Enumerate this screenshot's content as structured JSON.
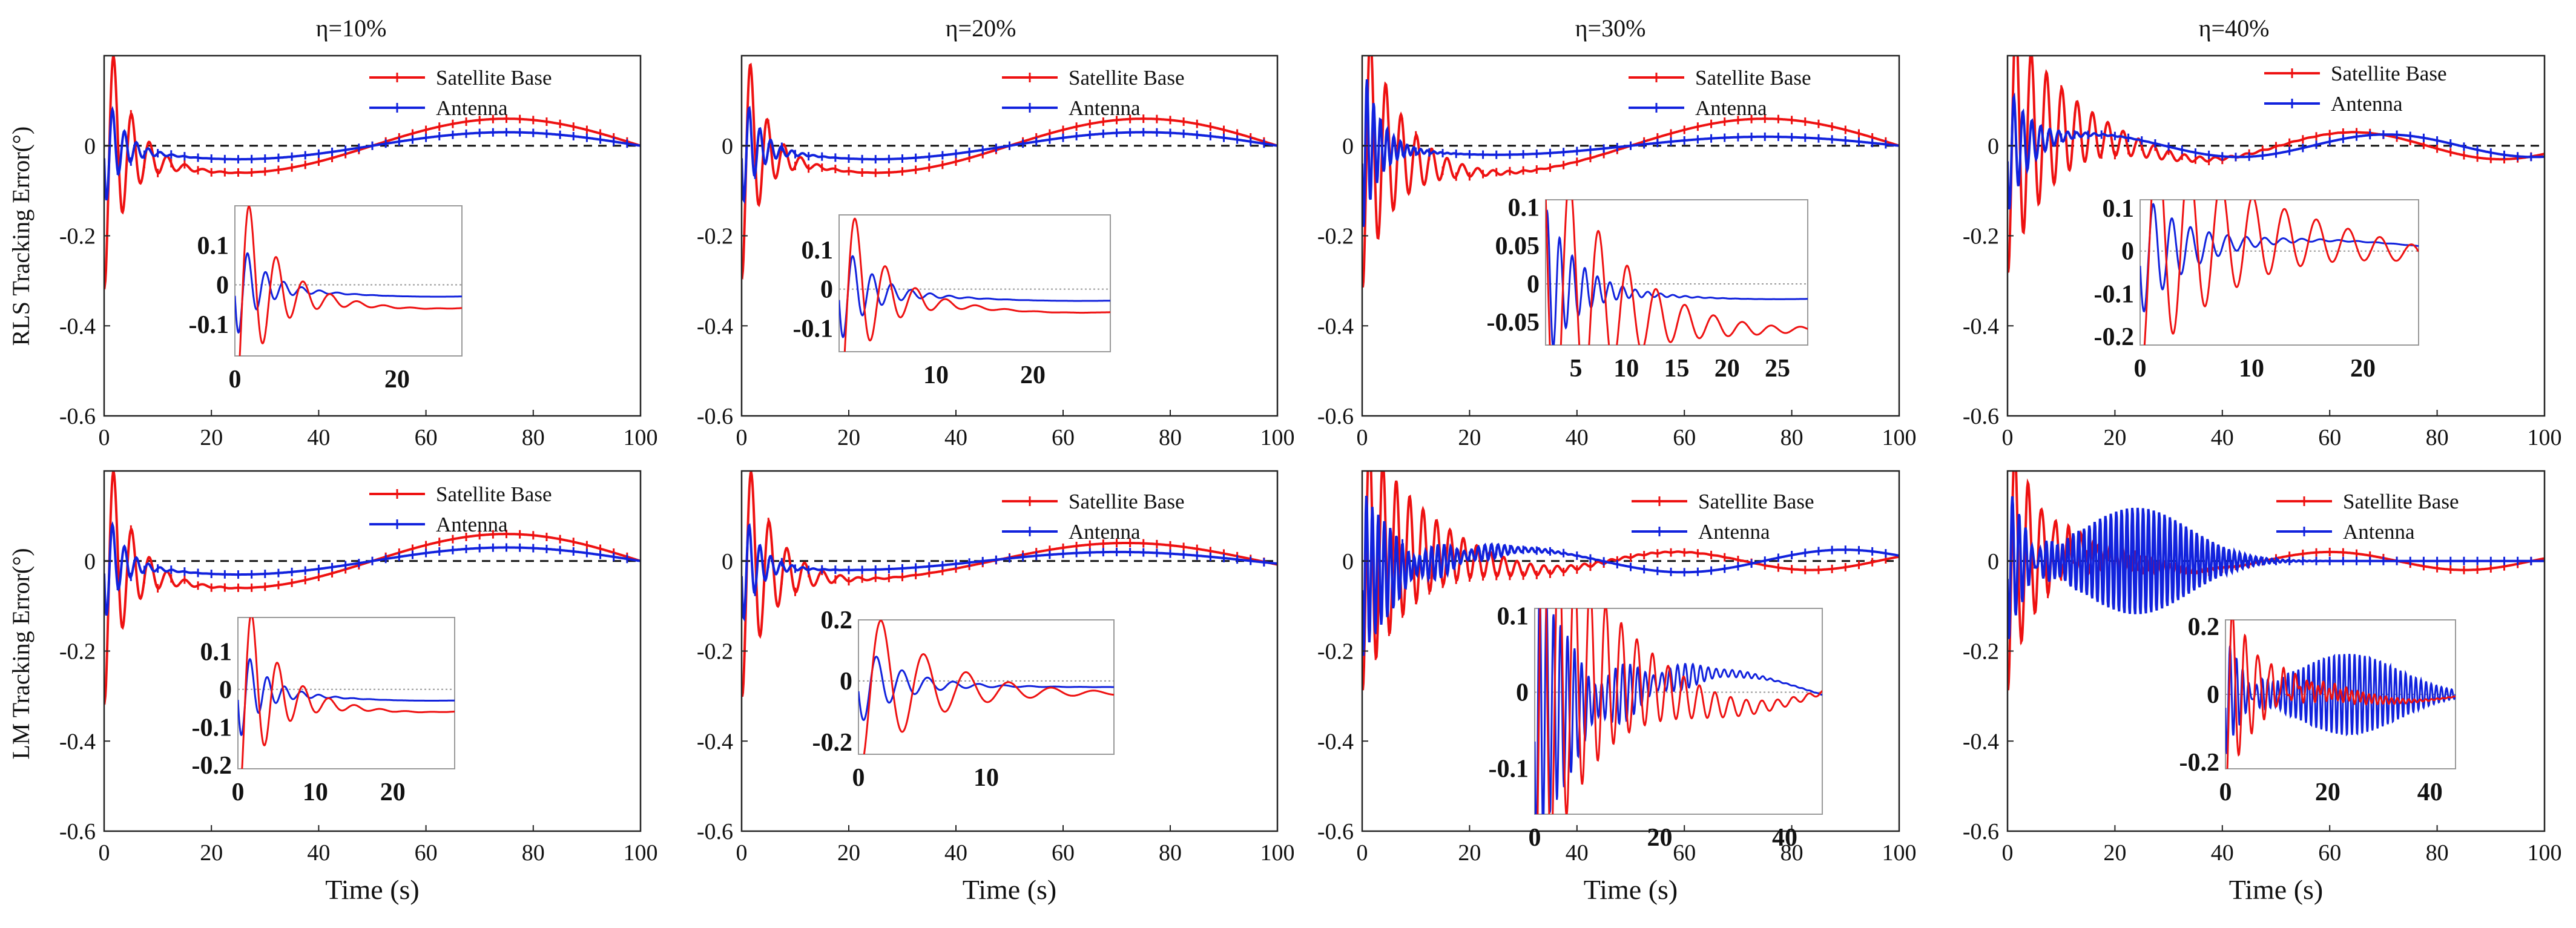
{
  "figure": {
    "column_titles": [
      "η=10%",
      "η=20%",
      "η=30%",
      "η=40%"
    ],
    "row_labels": [
      "RLS Tracking Error(°)",
      "LM Tracking Error(°)"
    ],
    "colors": {
      "satellite_base": "#ee1111",
      "antenna": "#1122dd",
      "zero_line": "#111111",
      "axes": "#222222",
      "inset_frame": "#999999"
    }
  },
  "chart_data": [
    {
      "id": "rls_10",
      "type": "line",
      "title": "η=10%",
      "xlabel": "",
      "ylabel": "RLS Tracking Error(°)",
      "xlim": [
        0,
        100
      ],
      "ylim": [
        -0.6,
        0.2
      ],
      "xticks": [
        "0",
        "20",
        "40",
        "60",
        "80",
        "100"
      ],
      "yticks": [
        "0",
        "-0.2",
        "-0.4",
        "-0.6"
      ],
      "legend": [
        "Satellite Base",
        "Antenna"
      ],
      "series": [
        {
          "name": "Satellite Base",
          "model": {
            "b_amp": -0.06,
            "b_phase": 0.0,
            "b_period": 100,
            "t_amp": 0.32,
            "t_decay": 4.0,
            "t_freq": 0.3,
            "t_phase": 1.3,
            "osc_amp": 0.0,
            "osc_freq": 0.0,
            "osc_center": 0
          }
        },
        {
          "name": "Antenna",
          "model": {
            "b_amp": -0.03,
            "b_phase": 0.0,
            "b_period": 100,
            "t_amp": 0.14,
            "t_decay": 3.0,
            "t_freq": 0.45,
            "t_phase": 0.2,
            "osc_amp": 0.0,
            "osc_freq": 0.0,
            "osc_center": 0
          }
        }
      ],
      "inset": {
        "xlim": [
          0,
          28
        ],
        "ylim": [
          -0.18,
          0.2
        ],
        "xticks": [
          "0",
          "20"
        ],
        "yticks": [
          "0.1",
          "0",
          "-0.1"
        ]
      }
    },
    {
      "id": "rls_20",
      "type": "line",
      "title": "η=20%",
      "xlabel": "",
      "ylabel": "",
      "xlim": [
        0,
        100
      ],
      "ylim": [
        -0.6,
        0.2
      ],
      "xticks": [
        "0",
        "20",
        "40",
        "60",
        "80",
        "100"
      ],
      "yticks": [
        "0",
        "-0.2",
        "-0.4",
        "-0.6"
      ],
      "legend": [
        "Satellite Base",
        "Antenna"
      ],
      "series": [
        {
          "name": "Satellite Base",
          "model": {
            "b_amp": -0.06,
            "b_phase": 0.0,
            "b_period": 100,
            "t_amp": 0.3,
            "t_decay": 3.5,
            "t_freq": 0.32,
            "t_phase": 1.3,
            "osc_amp": 0.0,
            "osc_freq": 0.0,
            "osc_center": 0
          }
        },
        {
          "name": "Antenna",
          "model": {
            "b_amp": -0.03,
            "b_phase": 0.0,
            "b_period": 100,
            "t_amp": 0.14,
            "t_decay": 3.0,
            "t_freq": 0.5,
            "t_phase": 0.2,
            "osc_amp": 0.0,
            "osc_freq": 0.0,
            "osc_center": 0
          }
        }
      ],
      "inset": {
        "xlim": [
          0,
          28
        ],
        "ylim": [
          -0.16,
          0.19
        ],
        "xticks": [
          "10",
          "20"
        ],
        "yticks": [
          "0.1",
          "0",
          "-0.1"
        ]
      }
    },
    {
      "id": "rls_30",
      "type": "line",
      "title": "η=30%",
      "xlabel": "",
      "ylabel": "",
      "xlim": [
        0,
        100
      ],
      "ylim": [
        -0.6,
        0.2
      ],
      "xticks": [
        "0",
        "20",
        "40",
        "60",
        "80",
        "100"
      ],
      "yticks": [
        "0",
        "-0.2",
        "-0.4",
        "-0.6"
      ],
      "legend": [
        "Satellite Base",
        "Antenna"
      ],
      "series": [
        {
          "name": "Satellite Base",
          "model": {
            "b_amp": -0.06,
            "b_phase": 0.0,
            "b_period": 100,
            "t_amp": 0.32,
            "t_decay": 6.0,
            "t_freq": 0.35,
            "t_phase": 1.3,
            "osc_amp": 0.0,
            "osc_freq": 0.0,
            "osc_center": 0
          }
        },
        {
          "name": "Antenna",
          "model": {
            "b_amp": -0.02,
            "b_phase": 0.0,
            "b_period": 100,
            "t_amp": 0.2,
            "t_decay": 3.0,
            "t_freq": 0.8,
            "t_phase": 0.2,
            "osc_amp": 0.0,
            "osc_freq": 0.0,
            "osc_center": 0
          }
        }
      ],
      "inset": {
        "xlim": [
          2,
          28
        ],
        "ylim": [
          -0.08,
          0.11
        ],
        "xticks": [
          "5",
          "10",
          "15",
          "20",
          "25"
        ],
        "yticks": [
          "0.1",
          "0.05",
          "0",
          "-0.05"
        ]
      }
    },
    {
      "id": "rls_40",
      "type": "line",
      "title": "η=40%",
      "xlabel": "",
      "ylabel": "",
      "xlim": [
        0,
        100
      ],
      "ylim": [
        -0.6,
        0.2
      ],
      "xticks": [
        "0",
        "20",
        "40",
        "60",
        "80",
        "100"
      ],
      "yticks": [
        "0",
        "-0.2",
        "-0.4",
        "-0.6"
      ],
      "legend": [
        "Satellite Base",
        "Antenna"
      ],
      "series": [
        {
          "name": "Satellite Base",
          "model": {
            "b_amp": 0.03,
            "b_phase": 0.5,
            "b_period": 55,
            "t_amp": 0.3,
            "t_decay": 9.0,
            "t_freq": 0.35,
            "t_phase": 1.3,
            "osc_amp": 0.0,
            "osc_freq": 0.0,
            "osc_center": 0
          }
        },
        {
          "name": "Antenna",
          "model": {
            "b_amp": 0.025,
            "b_phase": -0.2,
            "b_period": 55,
            "t_amp": 0.15,
            "t_decay": 4.0,
            "t_freq": 0.6,
            "t_phase": 0.2,
            "osc_amp": 0.0,
            "osc_freq": 0.0,
            "osc_center": 0
          }
        }
      ],
      "inset": {
        "xlim": [
          0,
          25
        ],
        "ylim": [
          -0.22,
          0.12
        ],
        "xticks": [
          "0",
          "10",
          "20"
        ],
        "yticks": [
          "0.1",
          "0",
          "-0.1",
          "-0.2"
        ]
      }
    },
    {
      "id": "lm_10",
      "type": "line",
      "title": "",
      "xlabel": "Time (s)",
      "ylabel": "LM Tracking Error(°)",
      "xlim": [
        0,
        100
      ],
      "ylim": [
        -0.6,
        0.2
      ],
      "xticks": [
        "0",
        "20",
        "40",
        "60",
        "80",
        "100"
      ],
      "yticks": [
        "0",
        "-0.2",
        "-0.4",
        "-0.6"
      ],
      "legend": [
        "Satellite Base",
        "Antenna"
      ],
      "series": [
        {
          "name": "Satellite Base",
          "model": {
            "b_amp": -0.06,
            "b_phase": 0.0,
            "b_period": 100,
            "t_amp": 0.32,
            "t_decay": 4.0,
            "t_freq": 0.3,
            "t_phase": 1.3,
            "osc_amp": 0.0,
            "osc_freq": 0.0,
            "osc_center": 0
          }
        },
        {
          "name": "Antenna",
          "model": {
            "b_amp": -0.03,
            "b_phase": 0.0,
            "b_period": 100,
            "t_amp": 0.14,
            "t_decay": 3.0,
            "t_freq": 0.45,
            "t_phase": 0.2,
            "osc_amp": 0.0,
            "osc_freq": 0.0,
            "osc_center": 0
          }
        }
      ],
      "inset": {
        "xlim": [
          0,
          28
        ],
        "ylim": [
          -0.21,
          0.19
        ],
        "xticks": [
          "0",
          "10",
          "20"
        ],
        "yticks": [
          "0.1",
          "0",
          "-0.1",
          "-0.2"
        ]
      }
    },
    {
      "id": "lm_20",
      "type": "line",
      "title": "",
      "xlabel": "Time (s)",
      "ylabel": "",
      "xlim": [
        0,
        100
      ],
      "ylim": [
        -0.6,
        0.2
      ],
      "xticks": [
        "0",
        "20",
        "40",
        "60",
        "80",
        "100"
      ],
      "yticks": [
        "0",
        "-0.2",
        "-0.4",
        "-0.6"
      ],
      "legend": [
        "Satellite Base",
        "Antenna"
      ],
      "series": [
        {
          "name": "Satellite Base",
          "model": {
            "b_amp": -0.04,
            "b_phase": 0.2,
            "b_period": 100,
            "t_amp": 0.3,
            "t_decay": 5.0,
            "t_freq": 0.3,
            "t_phase": 1.3,
            "osc_amp": 0.0,
            "osc_freq": 0.0,
            "osc_center": 0
          }
        },
        {
          "name": "Antenna",
          "model": {
            "b_amp": -0.02,
            "b_phase": 0.3,
            "b_period": 100,
            "t_amp": 0.14,
            "t_decay": 3.0,
            "t_freq": 0.5,
            "t_phase": 0.2,
            "osc_amp": 0.0,
            "osc_freq": 0.0,
            "osc_center": 0
          }
        }
      ],
      "inset": {
        "xlim": [
          0,
          20
        ],
        "ylim": [
          -0.24,
          0.2
        ],
        "xticks": [
          "0",
          "10"
        ],
        "yticks": [
          "0.2",
          "0",
          "-0.2"
        ]
      }
    },
    {
      "id": "lm_30",
      "type": "line",
      "title": "",
      "xlabel": "Time (s)",
      "ylabel": "",
      "xlim": [
        0,
        100
      ],
      "ylim": [
        -0.6,
        0.2
      ],
      "xticks": [
        "0",
        "20",
        "40",
        "60",
        "80",
        "100"
      ],
      "yticks": [
        "0",
        "-0.2",
        "-0.4",
        "-0.6"
      ],
      "legend": [
        "Satellite Base",
        "Antenna"
      ],
      "series": [
        {
          "name": "Satellite Base",
          "model": {
            "b_amp": 0.02,
            "b_phase": 0.5,
            "b_period": 50,
            "t_amp": 0.3,
            "t_decay": 10.0,
            "t_freq": 0.4,
            "t_phase": 1.3,
            "osc_amp": 0.0,
            "osc_freq": 0.0,
            "osc_center": 0
          }
        },
        {
          "name": "Antenna",
          "model": {
            "b_amp": -0.025,
            "b_phase": 1.6,
            "b_period": 60,
            "t_amp": 0.2,
            "t_decay": 6.0,
            "t_freq": 0.9,
            "t_phase": 0.2,
            "osc_amp": 0.02,
            "osc_freq": 0.8,
            "osc_center": 15
          }
        }
      ],
      "inset": {
        "xlim": [
          0,
          46
        ],
        "ylim": [
          -0.16,
          0.11
        ],
        "xticks": [
          "0",
          "20",
          "40"
        ],
        "yticks": [
          "0.1",
          "0",
          "-0.1"
        ]
      }
    },
    {
      "id": "lm_40",
      "type": "line",
      "title": "",
      "xlabel": "Time (s)",
      "ylabel": "",
      "xlim": [
        0,
        100
      ],
      "ylim": [
        -0.6,
        0.2
      ],
      "xticks": [
        "0",
        "20",
        "40",
        "60",
        "80",
        "100"
      ],
      "yticks": [
        "0",
        "-0.2",
        "-0.4",
        "-0.6"
      ],
      "legend": [
        "Satellite Base",
        "Antenna"
      ],
      "series": [
        {
          "name": "Satellite Base",
          "model": {
            "b_amp": 0.02,
            "b_phase": 0.3,
            "b_period": 50,
            "t_amp": 0.3,
            "t_decay": 6.0,
            "t_freq": 0.4,
            "t_phase": 1.3,
            "osc_amp": 0.02,
            "osc_freq": 0.9,
            "osc_center": 20
          }
        },
        {
          "name": "Antenna",
          "model": {
            "b_amp": 0.0,
            "b_phase": 0.0,
            "b_period": 50,
            "t_amp": 0.2,
            "t_decay": 3.0,
            "t_freq": 0.8,
            "t_phase": 0.2,
            "osc_amp": 0.12,
            "osc_freq": 1.0,
            "osc_center": 24
          }
        }
      ],
      "inset": {
        "xlim": [
          0,
          45
        ],
        "ylim": [
          -0.22,
          0.22
        ],
        "xticks": [
          "0",
          "20",
          "40"
        ],
        "yticks": [
          "0.2",
          "0",
          "-0.2"
        ]
      }
    }
  ]
}
